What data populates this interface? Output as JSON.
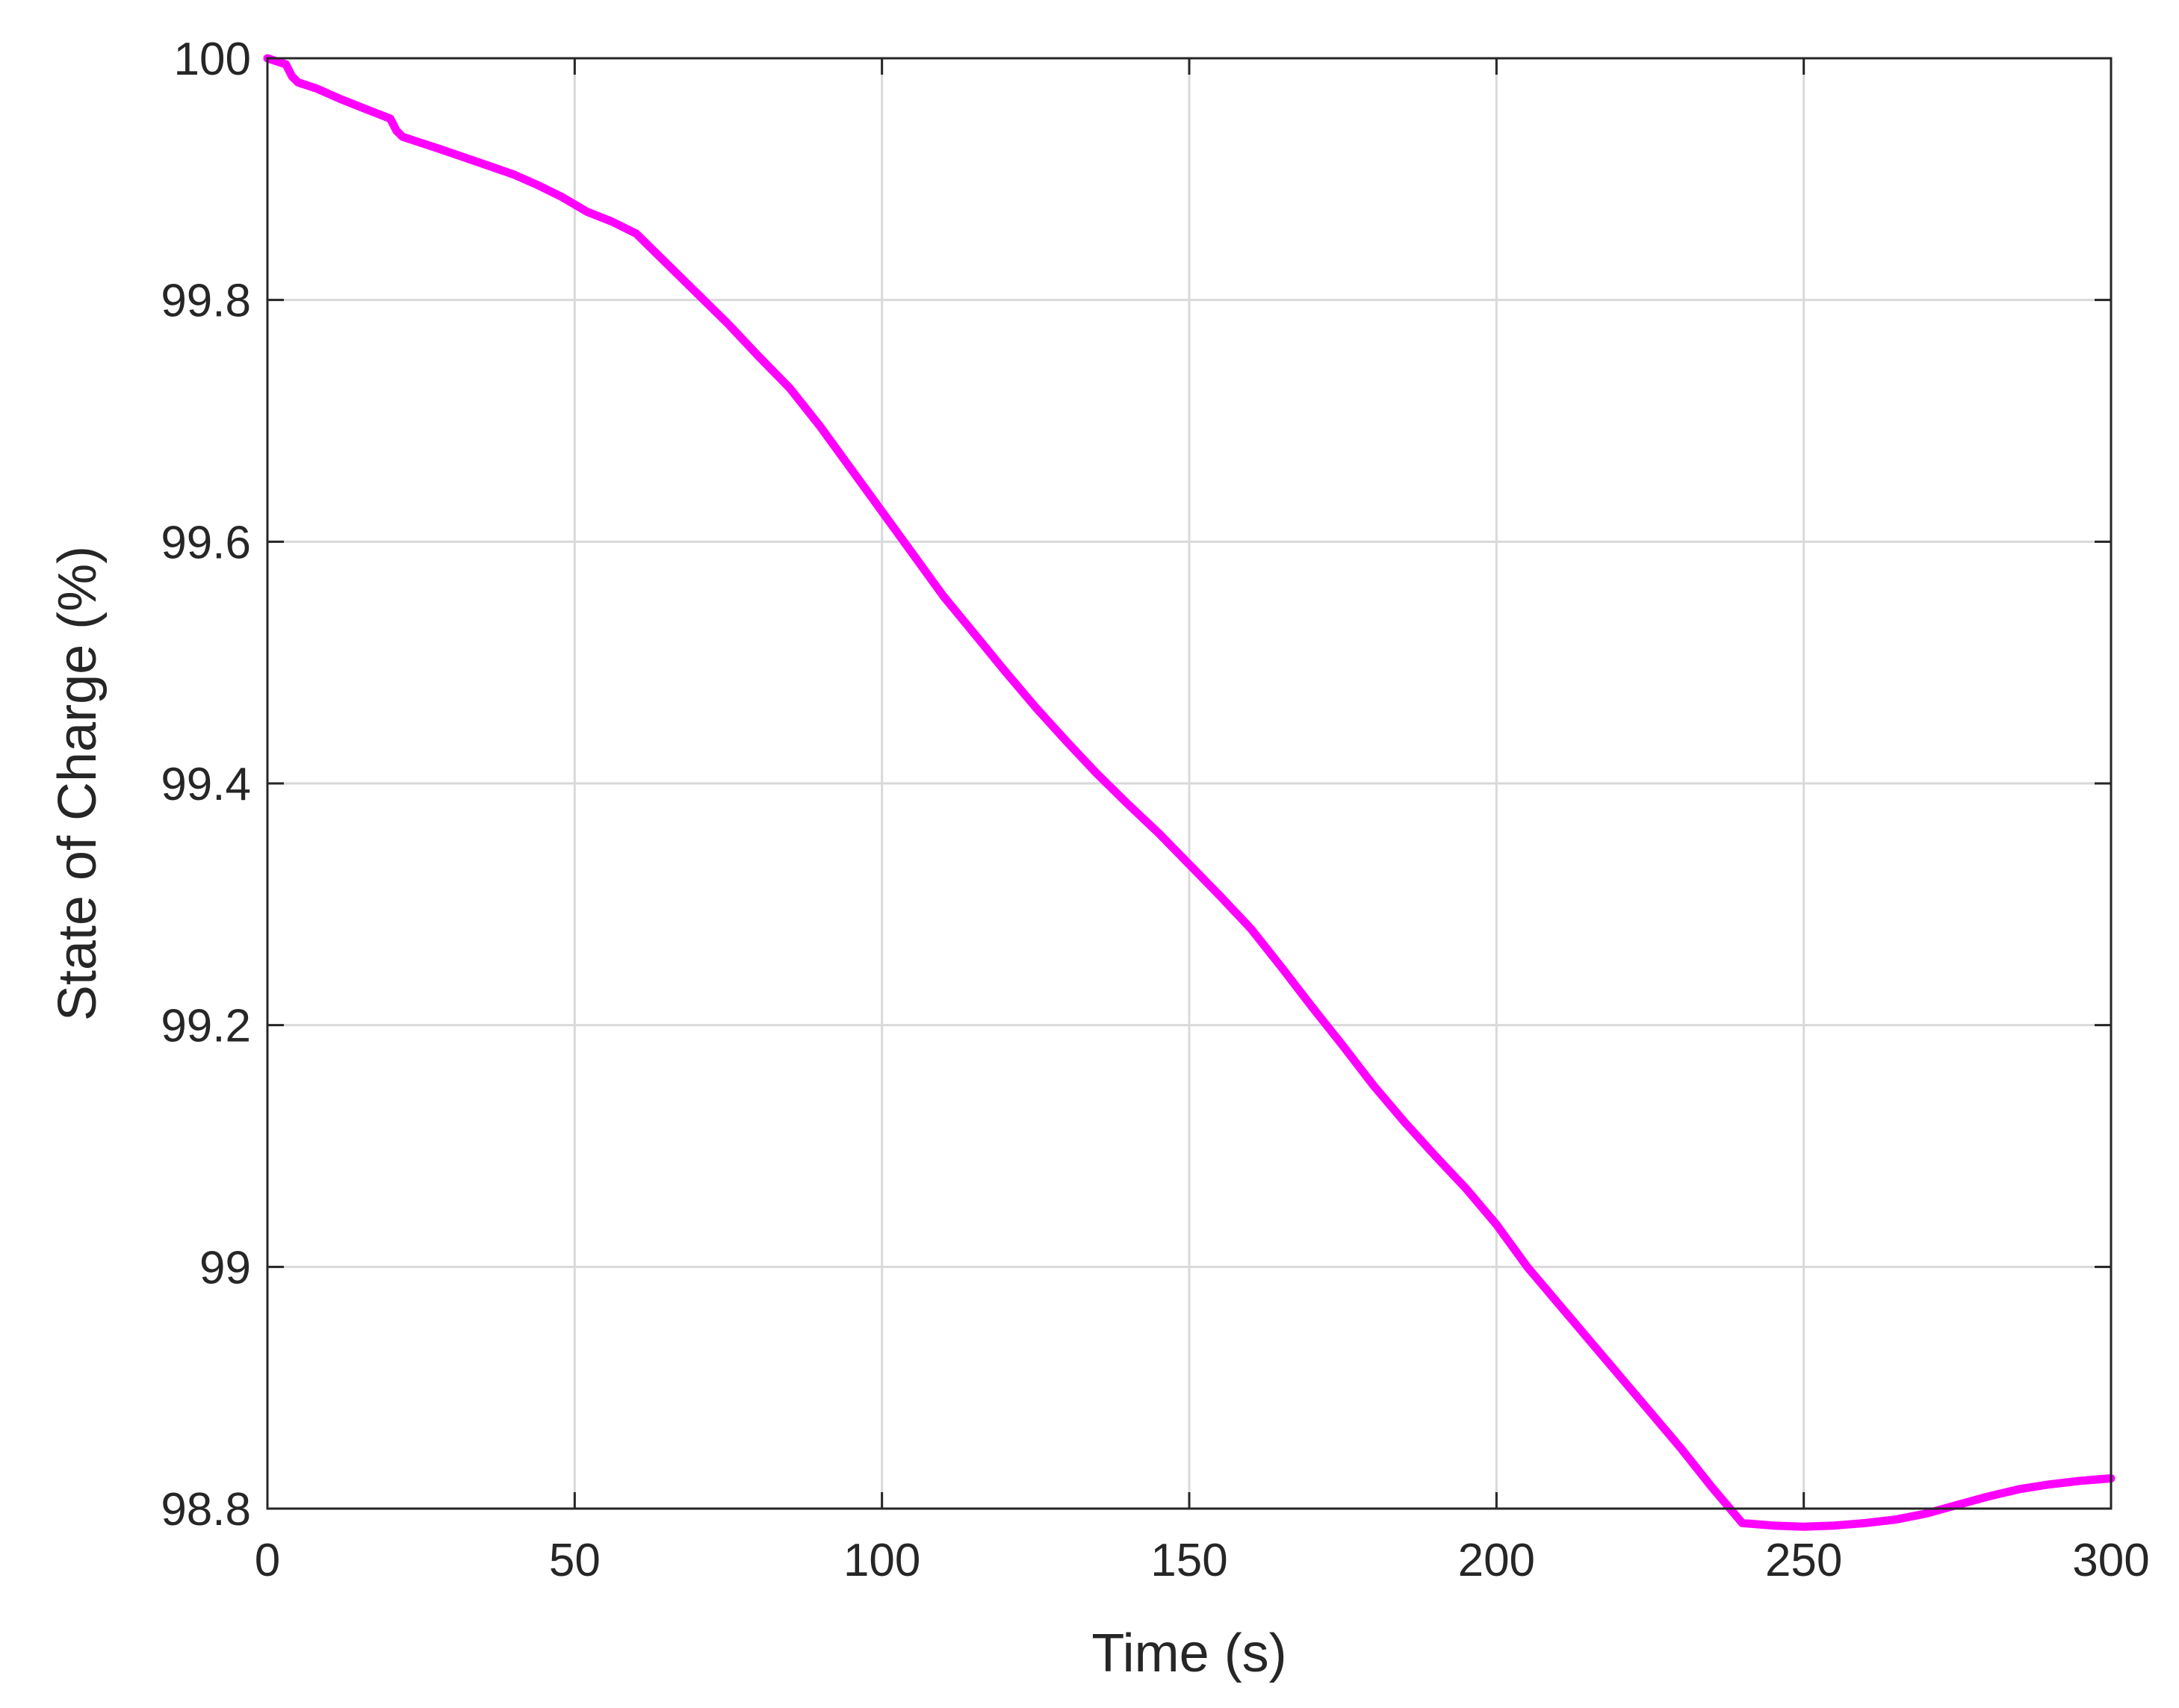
{
  "chart_data": {
    "type": "line",
    "title": "",
    "xlabel": "Time (s)",
    "ylabel": "State of Charge (%)",
    "xlim": [
      0,
      300
    ],
    "ylim": [
      98.8,
      100
    ],
    "grid": true,
    "xticks": [
      0,
      50,
      100,
      150,
      200,
      250,
      300
    ],
    "xtick_labels": [
      "0",
      "50",
      "100",
      "150",
      "200",
      "250",
      "300"
    ],
    "yticks": [
      98.8,
      99,
      99.2,
      99.4,
      99.6,
      99.8,
      100
    ],
    "ytick_labels": [
      "98.8",
      "99",
      "99.2",
      "99.4",
      "99.6",
      "99.8",
      "100"
    ],
    "series": [
      {
        "color": "#ff00ff",
        "x": [
          0,
          3,
          4,
          5,
          8,
          12,
          16,
          20,
          21,
          22,
          25,
          28,
          32,
          36,
          40,
          44,
          48,
          52,
          56,
          60,
          65,
          70,
          75,
          80,
          85,
          90,
          95,
          100,
          105,
          110,
          115,
          120,
          125,
          130,
          135,
          140,
          145,
          150,
          155,
          160,
          165,
          170,
          175,
          180,
          185,
          190,
          195,
          200,
          205,
          210,
          215,
          220,
          225,
          230,
          235,
          240,
          245,
          250,
          255,
          260,
          265,
          270,
          275,
          280,
          285,
          290,
          295,
          300
        ],
        "y": [
          100.0,
          99.995,
          99.985,
          99.98,
          99.975,
          99.966,
          99.958,
          99.95,
          99.94,
          99.935,
          99.93,
          99.925,
          99.918,
          99.911,
          99.904,
          99.895,
          99.885,
          99.873,
          99.865,
          99.855,
          99.83,
          99.805,
          99.78,
          99.753,
          99.727,
          99.695,
          99.66,
          99.625,
          99.59,
          99.555,
          99.524,
          99.493,
          99.463,
          99.435,
          99.408,
          99.383,
          99.359,
          99.333,
          99.307,
          99.28,
          99.248,
          99.215,
          99.183,
          99.15,
          99.12,
          99.092,
          99.065,
          99.035,
          99.0,
          98.97,
          98.94,
          98.91,
          98.88,
          98.85,
          98.818,
          98.788,
          98.786,
          98.785,
          98.786,
          98.788,
          98.791,
          98.796,
          98.803,
          98.81,
          98.816,
          98.82,
          98.823,
          98.825
        ]
      }
    ]
  }
}
